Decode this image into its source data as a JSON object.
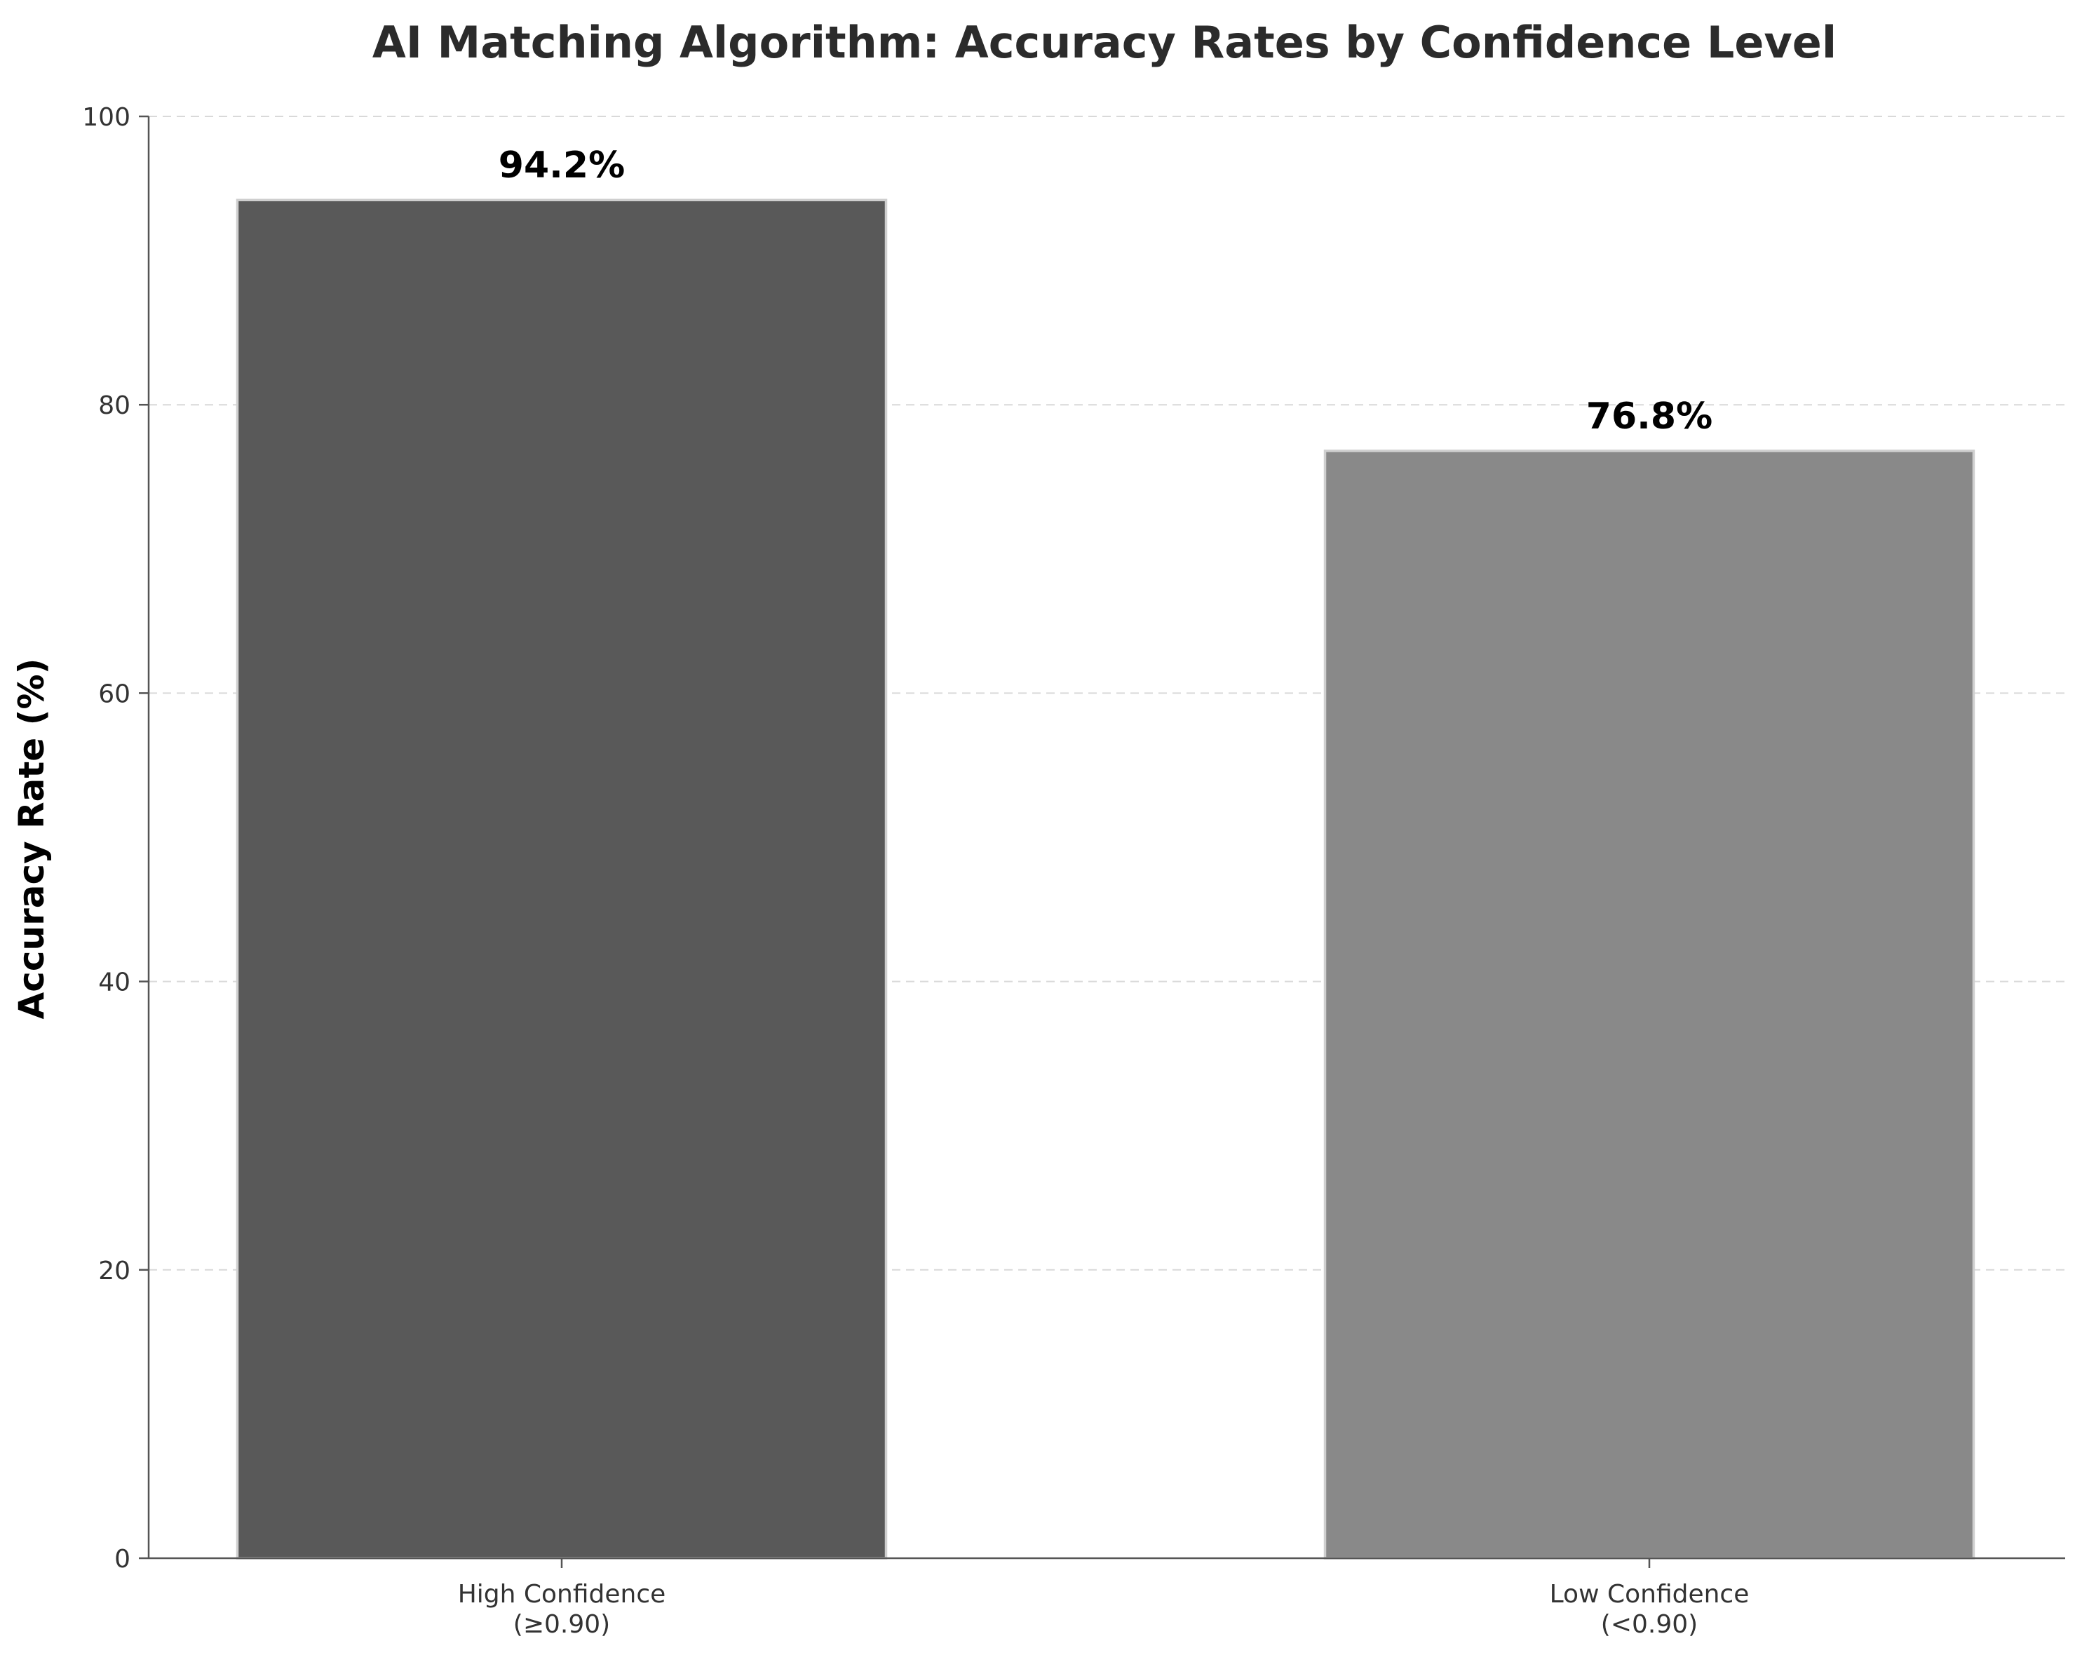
{
  "chart_data": {
    "type": "bar",
    "title": "AI Matching Algorithm: Accuracy Rates by Confidence Level",
    "xlabel": "",
    "ylabel": "Accuracy Rate (%)",
    "ylim": [
      0,
      100
    ],
    "yticks": [
      0,
      20,
      40,
      60,
      80,
      100
    ],
    "grid": "y",
    "categories": [
      [
        "High Confidence",
        "(≥0.90)"
      ],
      [
        "Low Confidence",
        "(<0.90)"
      ]
    ],
    "values": [
      94.2,
      76.8
    ],
    "value_labels": [
      "94.2%",
      "76.8%"
    ],
    "colors": [
      "#595959",
      "#898989"
    ]
  }
}
